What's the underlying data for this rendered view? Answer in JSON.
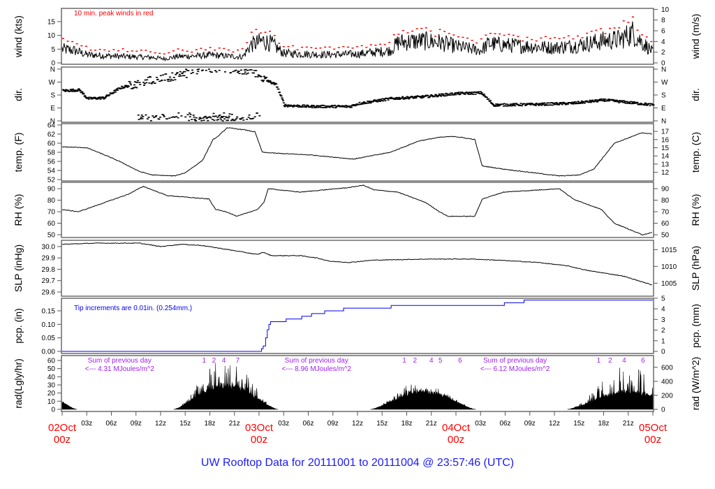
{
  "chart_data": {
    "type": "line",
    "title": "UW Rooftop Data for 20111001  to  20111004 @ 23:57:46  (UTC)",
    "x_unit": "hours since 02Oct 00z",
    "x_range": [
      0,
      72
    ],
    "hour_tick_labels": [
      "03z",
      "06z",
      "09z",
      "12z",
      "15z",
      "18z",
      "21z"
    ],
    "date_labels": [
      {
        "date": "02Oct",
        "hour": "00z"
      },
      {
        "date": "03Oct",
        "hour": "00z"
      },
      {
        "date": "04Oct",
        "hour": "00z"
      },
      {
        "date": "05Oct",
        "hour": "00z"
      }
    ],
    "panels": [
      {
        "id": "wind",
        "ylabel_left": "wind (kts)",
        "ylabel_right": "wind (m/s)",
        "ylim": [
          -0.5,
          19.8
        ],
        "left_ticks": [
          "0",
          "5",
          "10",
          "15"
        ],
        "right_ticks": [
          "0",
          "2",
          "4",
          "6",
          "8",
          "10"
        ],
        "right_factor": 1.944,
        "annotation": "10 min. peak winds in red",
        "series_color": "#000000",
        "gust_color": "#ff0000",
        "points": [
          [
            0,
            5
          ],
          [
            1.5,
            4.5
          ],
          [
            3,
            3
          ],
          [
            6,
            2.5
          ],
          [
            9,
            2.2
          ],
          [
            11,
            2
          ],
          [
            12.5,
            1.5
          ],
          [
            14,
            2.3
          ],
          [
            16,
            2.5
          ],
          [
            18,
            2.8
          ],
          [
            20,
            2.5
          ],
          [
            22,
            2.2
          ],
          [
            23,
            6.5
          ],
          [
            24.5,
            8
          ],
          [
            25.5,
            7
          ],
          [
            27,
            3.5
          ],
          [
            32,
            3
          ],
          [
            36,
            3.2
          ],
          [
            40,
            4.5
          ],
          [
            41,
            7.5
          ],
          [
            44,
            8
          ],
          [
            46,
            7.5
          ],
          [
            48,
            6
          ],
          [
            51,
            4.5
          ],
          [
            52,
            7
          ],
          [
            54,
            6.5
          ],
          [
            57,
            6
          ],
          [
            60,
            5.5
          ],
          [
            63,
            6.5
          ],
          [
            66,
            8
          ],
          [
            68,
            8.5
          ],
          [
            69.5,
            11
          ],
          [
            70.5,
            8
          ],
          [
            72,
            4
          ]
        ]
      },
      {
        "id": "dir",
        "ylabel_left": "dir.",
        "ylabel_right": "dir.",
        "ylim": [
          -9.7,
          374.6
        ],
        "left_ticks": [
          "N",
          "E",
          "S",
          "W",
          "N"
        ],
        "right_ticks": [
          "N",
          "E",
          "S",
          "W",
          "N"
        ],
        "tick_values": [
          0,
          90,
          180,
          270,
          360
        ],
        "points": [
          [
            0,
            210
          ],
          [
            2,
            215
          ],
          [
            3,
            155
          ],
          [
            5,
            160
          ],
          [
            7,
            230
          ],
          [
            9,
            260
          ],
          [
            11,
            290
          ],
          [
            13,
            300
          ],
          [
            15,
            330
          ],
          [
            17,
            360
          ],
          [
            19,
            372
          ],
          [
            21,
            360
          ],
          [
            23,
            350
          ],
          [
            24.5,
            290
          ],
          [
            26,
            250
          ],
          [
            27,
            108
          ],
          [
            30,
            100
          ],
          [
            35,
            100
          ],
          [
            36,
            120
          ],
          [
            40,
            155
          ],
          [
            44,
            168
          ],
          [
            48,
            190
          ],
          [
            51,
            195
          ],
          [
            52.5,
            110
          ],
          [
            58,
            115
          ],
          [
            62,
            122
          ],
          [
            66,
            145
          ],
          [
            70,
            122
          ],
          [
            72,
            110
          ]
        ]
      },
      {
        "id": "temp",
        "ylabel_left": "temp. (F)",
        "ylabel_right": "temp. (C)",
        "ylim": [
          51.7,
          64.3
        ],
        "left_ticks": [
          "52",
          "54",
          "56",
          "58",
          "60",
          "62",
          "64"
        ],
        "right_ticks": [
          "12",
          "13",
          "14",
          "15",
          "16",
          "17"
        ],
        "points": [
          [
            0,
            59.2
          ],
          [
            3,
            59
          ],
          [
            5.2,
            57.4
          ],
          [
            7,
            56
          ],
          [
            9.4,
            53.8
          ],
          [
            11,
            53
          ],
          [
            13.7,
            52.8
          ],
          [
            15,
            53.5
          ],
          [
            17.1,
            56.2
          ],
          [
            18.4,
            60.8
          ],
          [
            19,
            61.5
          ],
          [
            20.1,
            63.4
          ],
          [
            22,
            63
          ],
          [
            23.5,
            62.5
          ],
          [
            24.4,
            58
          ],
          [
            26,
            57.8
          ],
          [
            30.4,
            57.4
          ],
          [
            35.5,
            56.5
          ],
          [
            40,
            58
          ],
          [
            43.5,
            60.5
          ],
          [
            46,
            61.3
          ],
          [
            47.8,
            61.5
          ],
          [
            50.3,
            60.8
          ],
          [
            51.2,
            55
          ],
          [
            53.8,
            54.3
          ],
          [
            60.6,
            52.8
          ],
          [
            63,
            53
          ],
          [
            64.8,
            54.3
          ],
          [
            67.3,
            60
          ],
          [
            70.7,
            62.3
          ],
          [
            72,
            62
          ]
        ]
      },
      {
        "id": "rh",
        "ylabel_left": "RH (%)",
        "ylabel_right": "RH (%)",
        "ylim": [
          47.6,
          95.5
        ],
        "left_ticks": [
          "50",
          "60",
          "70",
          "80",
          "90"
        ],
        "right_ticks": [
          "50",
          "60",
          "70",
          "80",
          "90"
        ],
        "points": [
          [
            0,
            71.8
          ],
          [
            2,
            70
          ],
          [
            5.2,
            78
          ],
          [
            8,
            85
          ],
          [
            9.9,
            92
          ],
          [
            12.8,
            84
          ],
          [
            17.9,
            81
          ],
          [
            18.7,
            72
          ],
          [
            20,
            70
          ],
          [
            21.3,
            66
          ],
          [
            23.8,
            72
          ],
          [
            24.6,
            78
          ],
          [
            25.1,
            90
          ],
          [
            29,
            87
          ],
          [
            35,
            91
          ],
          [
            36.7,
            93
          ],
          [
            38,
            89
          ],
          [
            40.9,
            87
          ],
          [
            44.3,
            78
          ],
          [
            46,
            70
          ],
          [
            47,
            66
          ],
          [
            50.3,
            66
          ],
          [
            51.2,
            81
          ],
          [
            53.8,
            87
          ],
          [
            60.6,
            90
          ],
          [
            62.3,
            81
          ],
          [
            65.7,
            72
          ],
          [
            67.3,
            60
          ],
          [
            70.7,
            50
          ],
          [
            72,
            52
          ]
        ]
      },
      {
        "id": "slp",
        "ylabel_left": "SLP (inHg)",
        "ylabel_right": "SLP (hPa)",
        "ylim": [
          29.563,
          30.055
        ],
        "left_ticks": [
          "29.6",
          "29.7",
          "29.8",
          "29.9",
          "30.0"
        ],
        "right_ticks": [
          "1005",
          "1010",
          "1015"
        ],
        "points": [
          [
            0,
            30.02
          ],
          [
            4,
            30.03
          ],
          [
            9.4,
            30.03
          ],
          [
            12,
            30.0
          ],
          [
            14.5,
            30.02
          ],
          [
            17,
            30.01
          ],
          [
            20.5,
            29.97
          ],
          [
            23.8,
            29.93
          ],
          [
            24.5,
            29.95
          ],
          [
            25.5,
            29.92
          ],
          [
            29,
            29.92
          ],
          [
            31,
            29.9
          ],
          [
            32.7,
            29.87
          ],
          [
            35,
            29.86
          ],
          [
            37.8,
            29.88
          ],
          [
            44.6,
            29.89
          ],
          [
            50,
            29.89
          ],
          [
            53.1,
            29.88
          ],
          [
            58,
            29.86
          ],
          [
            61.6,
            29.83
          ],
          [
            64,
            29.79
          ],
          [
            68.4,
            29.74
          ],
          [
            72,
            29.66
          ]
        ]
      },
      {
        "id": "pcp",
        "ylabel_left": "pcp. (in)",
        "ylabel_right": "pcp. (mm)",
        "ylim": [
          -0.0078,
          0.1965
        ],
        "left_ticks": [
          "0.00",
          "0.05",
          "0.10",
          "0.15"
        ],
        "right_ticks": [
          "0",
          "1",
          "2",
          "3",
          "4",
          "5"
        ],
        "annotation": "Tip increments are 0.01in. (0.254mm.)",
        "series_color": "#0000ee",
        "steps": [
          [
            0,
            0
          ],
          [
            24.3,
            0.01
          ],
          [
            24.5,
            0.02
          ],
          [
            24.8,
            0.05
          ],
          [
            25.0,
            0.08
          ],
          [
            25.2,
            0.1
          ],
          [
            25.4,
            0.11
          ],
          [
            27.3,
            0.12
          ],
          [
            29.2,
            0.13
          ],
          [
            30.4,
            0.14
          ],
          [
            32.0,
            0.15
          ],
          [
            34.3,
            0.16
          ],
          [
            40.1,
            0.17
          ],
          [
            53.9,
            0.18
          ],
          [
            56.3,
            0.19
          ],
          [
            72,
            0.19
          ]
        ]
      },
      {
        "id": "rad",
        "ylabel_left": "rad(Lgly/hr)",
        "ylabel_right": "rad (W/m^2)",
        "ylim": [
          -2.6,
          66
        ],
        "left_ticks": [
          "0",
          "10",
          "20",
          "30",
          "40",
          "50",
          "60"
        ],
        "right_ticks": [
          "0",
          "200",
          "400",
          "600"
        ],
        "days": [
          {
            "start": -10,
            "end": 1.8,
            "peak": 28,
            "spikes": 0
          },
          {
            "start": 13.6,
            "end": 26.3,
            "peak": 30,
            "spikes": 30
          },
          {
            "start": 37.6,
            "end": 50.4,
            "peak": 22,
            "spikes": 12
          },
          {
            "start": 61.6,
            "end": 76.5,
            "peak": 22,
            "spikes": 30
          }
        ],
        "annotations": [
          {
            "line1": "Sum of previous day",
            "line2": "<--- 4.31 MJoules/m^2",
            "at_hour": 7.0,
            "hour_marks": [
              {
                "label": "1",
                "hour": 17.3
              },
              {
                "label": "2",
                "hour": 18.5
              },
              {
                "label": "4",
                "hour": 19.7
              },
              {
                "label": "7",
                "hour": 21.4
              }
            ]
          },
          {
            "line1": "Sum of previous day",
            "line2": "<--- 8.96 MJoules/m^2",
            "at_hour": 31.0,
            "hour_marks": [
              {
                "label": "1",
                "hour": 41.7
              },
              {
                "label": "2",
                "hour": 43.0
              },
              {
                "label": "4",
                "hour": 45.0
              },
              {
                "label": "5",
                "hour": 46.1
              },
              {
                "label": "6",
                "hour": 48.5
              }
            ]
          },
          {
            "line1": "Sum of previous day",
            "line2": "<--- 6.12 MJoules/m^2",
            "at_hour": 55.2,
            "hour_marks": [
              {
                "label": "1",
                "hour": 65.4
              },
              {
                "label": "2",
                "hour": 66.8
              },
              {
                "label": "4",
                "hour": 68.5
              },
              {
                "label": "6",
                "hour": 70.8
              }
            ]
          }
        ]
      }
    ]
  }
}
